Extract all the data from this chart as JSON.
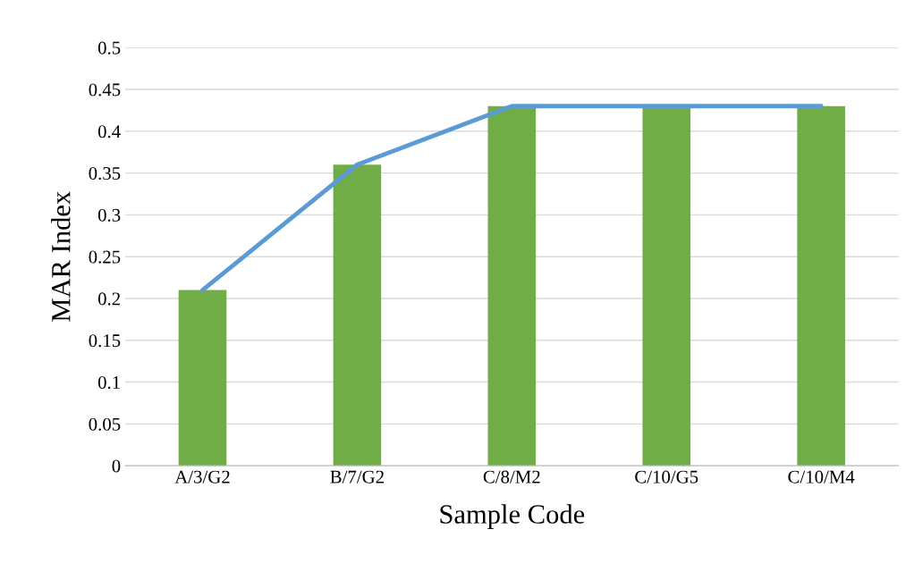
{
  "chart_data": {
    "type": "bar",
    "xlabel": "Sample Code",
    "ylabel": "MAR Index",
    "categories": [
      "A/3/G2",
      "B/7/G2",
      "C/8/M2",
      "C/10/G5",
      "C/10/M4"
    ],
    "series": [
      {
        "color": "#70ad47",
        "values": [
          0.21,
          0.36,
          0.43,
          0.43,
          0.43
        ]
      },
      {
        "type": "line",
        "color": "#5b9bd5",
        "values": [
          0.21,
          0.36,
          0.43,
          0.43,
          0.43
        ]
      }
    ],
    "ylim": [
      0,
      0.5
    ],
    "yticks": [
      0,
      0.05,
      0.1,
      0.15,
      0.2,
      0.25,
      0.3,
      0.35,
      0.4,
      0.45,
      0.5
    ],
    "grid": "y",
    "legend": false,
    "marker": "none",
    "line_style": "solid"
  }
}
